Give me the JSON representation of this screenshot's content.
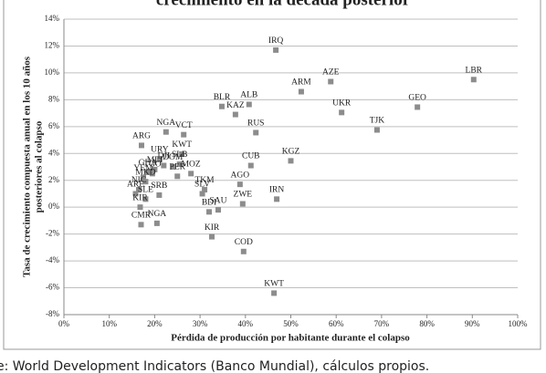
{
  "chart_data": {
    "type": "scatter",
    "title": "crecimiento en la década posterior",
    "x_label": "Pérdida de producción por habitante  durante el colapso",
    "y_label": [
      "Tasa de crecimiento compuesta anual en  los 10 años",
      "posteriores al colapso"
    ],
    "source": "e: World Development Indicators (Banco Mundial), cálculos propios.",
    "color": "#8c8c8c",
    "grid": true,
    "xlim": [
      0,
      100
    ],
    "ylim": [
      -8,
      14
    ],
    "xticks": [
      {
        "value": 0,
        "label": "0%"
      },
      {
        "value": 10,
        "label": "10%"
      },
      {
        "value": 20,
        "label": "20%"
      },
      {
        "value": 30,
        "label": "30%"
      },
      {
        "value": 40,
        "label": "40%"
      },
      {
        "value": 50,
        "label": "50%"
      },
      {
        "value": 60,
        "label": "60%"
      },
      {
        "value": 70,
        "label": "70%"
      },
      {
        "value": 80,
        "label": "80%"
      },
      {
        "value": 90,
        "label": "90%"
      },
      {
        "value": 100,
        "label": "100%"
      }
    ],
    "yticks": [
      {
        "value": -8,
        "label": "-8%"
      },
      {
        "value": -6,
        "label": "-6%"
      },
      {
        "value": -4,
        "label": "-4%"
      },
      {
        "value": -2,
        "label": "-2%"
      },
      {
        "value": 0,
        "label": "0%"
      },
      {
        "value": 2,
        "label": "2%"
      },
      {
        "value": 4,
        "label": "4%"
      },
      {
        "value": 6,
        "label": "6%"
      },
      {
        "value": 8,
        "label": "8%"
      },
      {
        "value": 10,
        "label": "10%"
      },
      {
        "value": 12,
        "label": "12%"
      },
      {
        "value": 14,
        "label": "14%"
      }
    ],
    "point_labels": [
      "IRQ",
      "AZE",
      "LBR",
      "ARM",
      "GEO",
      "UKR",
      "BLR",
      "ALB",
      "KAZ",
      "TJK",
      "RUS",
      "NGA",
      "VCT",
      "ARG",
      "KGZ",
      "CUB",
      "KWT",
      "URY",
      "IRN",
      "ZWE",
      "AGO",
      "SAU",
      "BDI",
      "KIR",
      "COD",
      "KWT",
      "GHA",
      "DJI",
      "SLB",
      "DOM",
      "TGO",
      "PER",
      "MOZ",
      "MLI",
      "YEM",
      "MKD",
      "NIC",
      "ARE",
      "SRB",
      "SLE",
      "KIR",
      "CMR",
      "NGA",
      "TKM",
      "SLV"
    ],
    "x": [
      46.7,
      58.8,
      90.3,
      52.3,
      77.9,
      61.2,
      34.8,
      40.8,
      37.8,
      69,
      42.3,
      22.5,
      26.4,
      17.1,
      50,
      41.2,
      26,
      21.1,
      46.9,
      39.4,
      38.8,
      34,
      32,
      32.6,
      39.6,
      46.3,
      18.5,
      22,
      25.5,
      24,
      19.5,
      25,
      28,
      20,
      17.5,
      18,
      16.5,
      15.8,
      21,
      18,
      16.8,
      17,
      20.5,
      31,
      30.5
    ],
    "values": [
      11.7,
      9.35,
      9.5,
      8.6,
      7.45,
      7.05,
      7.5,
      7.65,
      6.9,
      5.75,
      5.55,
      5.6,
      5.4,
      4.6,
      3.45,
      3.1,
      3.95,
      3.6,
      0.6,
      0.25,
      1.7,
      -0.2,
      -0.35,
      -2.2,
      -3.3,
      -6.4,
      2.6,
      3.1,
      3.2,
      3.0,
      2.5,
      2.3,
      2.5,
      2.8,
      2.2,
      1.9,
      1.3,
      1.0,
      0.9,
      0.6,
      0.0,
      -1.3,
      -1.2,
      1.3,
      1.0
    ]
  }
}
